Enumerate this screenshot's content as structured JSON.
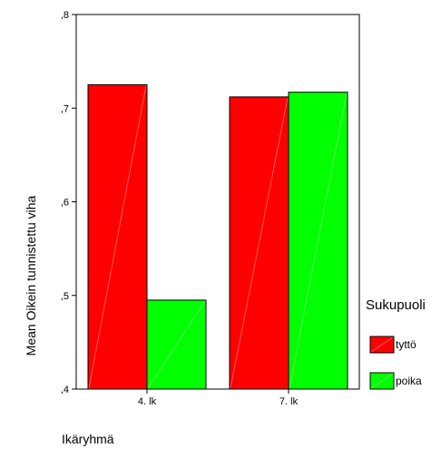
{
  "chart_data": {
    "type": "bar",
    "categories": [
      "4. lk",
      "7. lk"
    ],
    "series": [
      {
        "name": "tyttö",
        "values": [
          0.725,
          0.712
        ],
        "color": "#ff0000"
      },
      {
        "name": "poika",
        "values": [
          0.495,
          0.717
        ],
        "color": "#00ff00"
      }
    ],
    "ylim": [
      0.4,
      0.8
    ],
    "yticks": [
      0.4,
      0.5,
      0.6,
      0.7,
      0.8
    ],
    "ytick_labels": [
      ",4",
      ",5",
      ",6",
      ",7",
      ",8"
    ],
    "xlabel": "Ikäryhmä",
    "ylabel": "Mean Oikein tunnistettu viha",
    "legend_title": "Sukupuoli",
    "legend_placement": "right",
    "grid": false
  }
}
